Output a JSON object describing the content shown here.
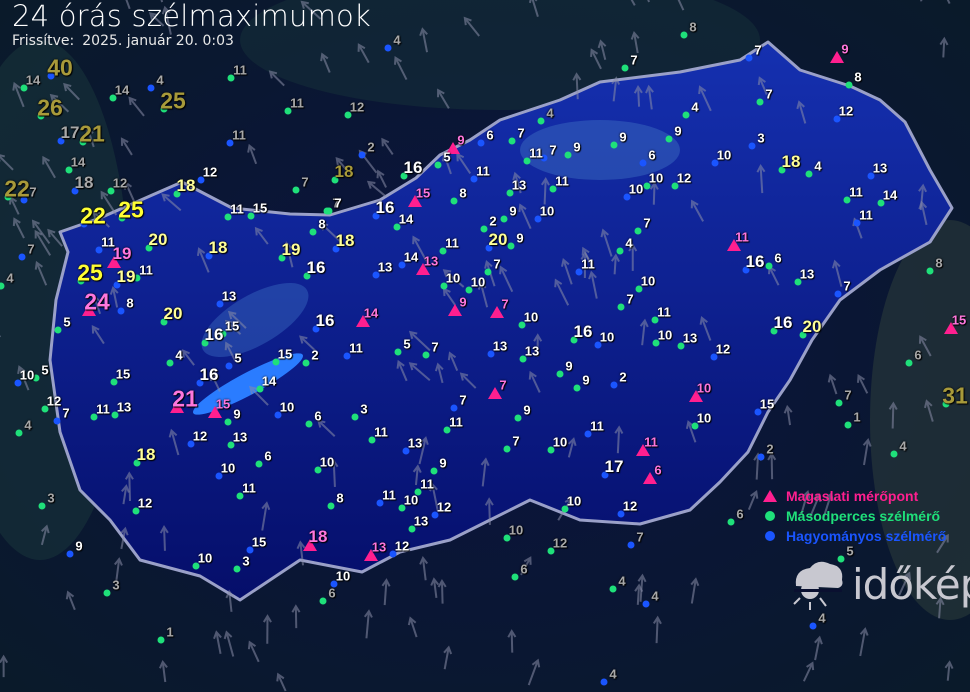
{
  "header": {
    "title": "24 órás szélmaximumok",
    "updated_label": "Frissítve:",
    "updated_value": "2025. január 20. 0:03"
  },
  "legend": {
    "items": [
      {
        "label": "Magaslati mérőpont",
        "symbol": "triangle",
        "color": "#ff1f8f"
      },
      {
        "label": "Másodperces szélmérő",
        "symbol": "dot",
        "color": "#1fe07a"
      },
      {
        "label": "Hagyományos szélmérő",
        "symbol": "dot",
        "color": "#1a55ff"
      }
    ]
  },
  "logo": {
    "text": "időkép"
  },
  "colors": {
    "background": "#070b2a",
    "country_fill": "#0a1a8a",
    "country_border": "#9aa0c8",
    "label_normal": "#ffffff",
    "label_strong": "#ffff99",
    "label_storm": "#ffff33",
    "label_mountain": "#ff77dd",
    "label_abroad": "#a8a8a8",
    "label_abroad_strong": "#a89a3a"
  },
  "stations": [
    {
      "v": "40",
      "k": "abroad_strong"
    },
    {
      "v": "14",
      "k": "abroad"
    },
    {
      "v": "26",
      "k": "abroad_strong"
    },
    {
      "v": "17",
      "k": "abroad"
    },
    {
      "v": "21",
      "k": "abroad_strong"
    },
    {
      "v": "14",
      "k": "abroad"
    },
    {
      "v": "4",
      "k": "abroad"
    },
    {
      "v": "25",
      "k": "abroad_strong"
    },
    {
      "v": "14",
      "k": "abroad"
    },
    {
      "v": "18",
      "k": "abroad"
    },
    {
      "v": "12",
      "k": "abroad"
    },
    {
      "v": "22",
      "k": "abroad_strong"
    },
    {
      "v": "7",
      "k": "abroad"
    },
    {
      "v": "11",
      "k": "abroad"
    },
    {
      "v": "11",
      "k": "abroad"
    },
    {
      "v": "11",
      "k": "abroad"
    },
    {
      "v": "7",
      "k": "abroad"
    },
    {
      "v": "12",
      "k": "abroad"
    },
    {
      "v": "2",
      "k": "abroad"
    },
    {
      "v": "18",
      "k": "abroad_strong"
    },
    {
      "v": "7",
      "k": "abroad"
    },
    {
      "v": "4",
      "k": "abroad"
    },
    {
      "v": "8",
      "k": "abroad"
    },
    {
      "v": "4",
      "k": "abroad"
    },
    {
      "v": "7",
      "k": "normal"
    },
    {
      "v": "9",
      "k": "mountain"
    },
    {
      "v": "8",
      "k": "normal"
    },
    {
      "v": "12",
      "k": "normal"
    },
    {
      "v": "7",
      "k": "normal"
    },
    {
      "v": "4",
      "k": "normal"
    },
    {
      "v": "3",
      "k": "normal"
    },
    {
      "v": "7",
      "k": "normal"
    },
    {
      "v": "18",
      "k": "strong"
    },
    {
      "v": "12",
      "k": "normal"
    },
    {
      "v": "11",
      "k": "normal"
    },
    {
      "v": "15",
      "k": "normal"
    },
    {
      "v": "22",
      "k": "storm"
    },
    {
      "v": "25",
      "k": "storm"
    },
    {
      "v": "20",
      "k": "strong"
    },
    {
      "v": "11",
      "k": "normal"
    },
    {
      "v": "19",
      "k": "mountain"
    },
    {
      "v": "25",
      "k": "storm"
    },
    {
      "v": "19",
      "k": "strong"
    },
    {
      "v": "11",
      "k": "normal"
    },
    {
      "v": "24",
      "k": "mountain"
    },
    {
      "v": "8",
      "k": "normal"
    },
    {
      "v": "20",
      "k": "strong"
    },
    {
      "v": "5",
      "k": "normal"
    },
    {
      "v": "18",
      "k": "strong"
    },
    {
      "v": "19",
      "k": "strong"
    },
    {
      "v": "16",
      "k": "normal"
    },
    {
      "v": "18",
      "k": "strong"
    },
    {
      "v": "8",
      "k": "normal"
    },
    {
      "v": "7",
      "k": "normal"
    },
    {
      "v": "16",
      "k": "normal"
    },
    {
      "v": "14",
      "k": "normal"
    },
    {
      "v": "16",
      "k": "normal"
    },
    {
      "v": "15",
      "k": "mountain"
    },
    {
      "v": "5",
      "k": "normal"
    },
    {
      "v": "9",
      "k": "mountain"
    },
    {
      "v": "6",
      "k": "normal"
    },
    {
      "v": "7",
      "k": "normal"
    },
    {
      "v": "11",
      "k": "normal"
    },
    {
      "v": "7",
      "k": "normal"
    },
    {
      "v": "9",
      "k": "normal"
    },
    {
      "v": "9",
      "k": "normal"
    },
    {
      "v": "6",
      "k": "normal"
    },
    {
      "v": "9",
      "k": "normal"
    },
    {
      "v": "8",
      "k": "normal"
    },
    {
      "v": "11",
      "k": "normal"
    },
    {
      "v": "13",
      "k": "normal"
    },
    {
      "v": "11",
      "k": "normal"
    },
    {
      "v": "10",
      "k": "normal"
    },
    {
      "v": "9",
      "k": "normal"
    },
    {
      "v": "2",
      "k": "normal"
    },
    {
      "v": "20",
      "k": "strong"
    },
    {
      "v": "9",
      "k": "normal"
    },
    {
      "v": "11",
      "k": "normal"
    },
    {
      "v": "14",
      "k": "normal"
    },
    {
      "v": "13",
      "k": "mountain"
    },
    {
      "v": "10",
      "k": "normal"
    },
    {
      "v": "13",
      "k": "normal"
    },
    {
      "v": "10",
      "k": "normal"
    },
    {
      "v": "7",
      "k": "normal"
    },
    {
      "v": "10",
      "k": "normal"
    },
    {
      "v": "10",
      "k": "normal"
    },
    {
      "v": "12",
      "k": "normal"
    },
    {
      "v": "10",
      "k": "normal"
    },
    {
      "v": "18",
      "k": "strong"
    },
    {
      "v": "4",
      "k": "normal"
    },
    {
      "v": "13",
      "k": "normal"
    },
    {
      "v": "11",
      "k": "normal"
    },
    {
      "v": "14",
      "k": "normal"
    },
    {
      "v": "11",
      "k": "normal"
    },
    {
      "v": "7",
      "k": "normal"
    },
    {
      "v": "4",
      "k": "normal"
    },
    {
      "v": "11",
      "k": "normal"
    },
    {
      "v": "10",
      "k": "normal"
    },
    {
      "v": "11",
      "k": "mountain"
    },
    {
      "v": "16",
      "k": "normal"
    },
    {
      "v": "6",
      "k": "normal"
    },
    {
      "v": "13",
      "k": "normal"
    },
    {
      "v": "7",
      "k": "normal"
    },
    {
      "v": "7",
      "k": "normal"
    },
    {
      "v": "11",
      "k": "normal"
    },
    {
      "v": "9",
      "k": "mountain"
    },
    {
      "v": "7",
      "k": "mountain"
    },
    {
      "v": "10",
      "k": "normal"
    },
    {
      "v": "13",
      "k": "normal"
    },
    {
      "v": "16",
      "k": "normal"
    },
    {
      "v": "15",
      "k": "normal"
    },
    {
      "v": "16",
      "k": "normal"
    },
    {
      "v": "14",
      "k": "mountain"
    },
    {
      "v": "4",
      "k": "normal"
    },
    {
      "v": "5",
      "k": "normal"
    },
    {
      "v": "15",
      "k": "normal"
    },
    {
      "v": "2",
      "k": "normal"
    },
    {
      "v": "11",
      "k": "normal"
    },
    {
      "v": "5",
      "k": "normal"
    },
    {
      "v": "7",
      "k": "normal"
    },
    {
      "v": "13",
      "k": "normal"
    },
    {
      "v": "13",
      "k": "normal"
    },
    {
      "v": "16",
      "k": "normal"
    },
    {
      "v": "10",
      "k": "normal"
    },
    {
      "v": "10",
      "k": "normal"
    },
    {
      "v": "13",
      "k": "normal"
    },
    {
      "v": "12",
      "k": "normal"
    },
    {
      "v": "16",
      "k": "normal"
    },
    {
      "v": "20",
      "k": "strong"
    },
    {
      "v": "15",
      "k": "mountain"
    },
    {
      "v": "6",
      "k": "abroad"
    },
    {
      "v": "31",
      "k": "abroad_strong"
    },
    {
      "v": "10",
      "k": "normal"
    },
    {
      "v": "5",
      "k": "normal"
    },
    {
      "v": "15",
      "k": "normal"
    },
    {
      "v": "16",
      "k": "normal"
    },
    {
      "v": "14",
      "k": "normal"
    },
    {
      "v": "12",
      "k": "normal"
    },
    {
      "v": "7",
      "k": "normal"
    },
    {
      "v": "11",
      "k": "normal"
    },
    {
      "v": "13",
      "k": "normal"
    },
    {
      "v": "21",
      "k": "mountain"
    },
    {
      "v": "15",
      "k": "mountain"
    },
    {
      "v": "9",
      "k": "normal"
    },
    {
      "v": "10",
      "k": "normal"
    },
    {
      "v": "6",
      "k": "normal"
    },
    {
      "v": "3",
      "k": "normal"
    },
    {
      "v": "7",
      "k": "normal"
    },
    {
      "v": "11",
      "k": "normal"
    },
    {
      "v": "9",
      "k": "normal"
    },
    {
      "v": "7",
      "k": "mountain"
    },
    {
      "v": "9",
      "k": "normal"
    },
    {
      "v": "9",
      "k": "normal"
    },
    {
      "v": "2",
      "k": "normal"
    },
    {
      "v": "10",
      "k": "mountain"
    },
    {
      "v": "7",
      "k": "abroad"
    },
    {
      "v": "15",
      "k": "normal"
    },
    {
      "v": "10",
      "k": "normal"
    },
    {
      "v": "1",
      "k": "abroad"
    },
    {
      "v": "12",
      "k": "normal"
    },
    {
      "v": "13",
      "k": "normal"
    },
    {
      "v": "11",
      "k": "normal"
    },
    {
      "v": "13",
      "k": "normal"
    },
    {
      "v": "7",
      "k": "normal"
    },
    {
      "v": "10",
      "k": "normal"
    },
    {
      "v": "11",
      "k": "normal"
    },
    {
      "v": "11",
      "k": "mountain"
    },
    {
      "v": "4",
      "k": "abroad"
    },
    {
      "v": "2",
      "k": "abroad"
    },
    {
      "v": "18",
      "k": "strong"
    },
    {
      "v": "6",
      "k": "normal"
    },
    {
      "v": "10",
      "k": "normal"
    },
    {
      "v": "10",
      "k": "normal"
    },
    {
      "v": "9",
      "k": "normal"
    },
    {
      "v": "17",
      "k": "normal"
    },
    {
      "v": "6",
      "k": "mountain"
    },
    {
      "v": "11",
      "k": "normal"
    },
    {
      "v": "11",
      "k": "normal"
    },
    {
      "v": "11",
      "k": "normal"
    },
    {
      "v": "10",
      "k": "normal"
    },
    {
      "v": "12",
      "k": "normal"
    },
    {
      "v": "8",
      "k": "normal"
    },
    {
      "v": "10",
      "k": "normal"
    },
    {
      "v": "12",
      "k": "normal"
    },
    {
      "v": "12",
      "k": "normal"
    },
    {
      "v": "13",
      "k": "normal"
    },
    {
      "v": "15",
      "k": "normal"
    },
    {
      "v": "18",
      "k": "mountain"
    },
    {
      "v": "13",
      "k": "mountain"
    },
    {
      "v": "12",
      "k": "normal"
    },
    {
      "v": "10",
      "k": "abroad"
    },
    {
      "v": "12",
      "k": "abroad"
    },
    {
      "v": "7",
      "k": "abroad"
    },
    {
      "v": "6",
      "k": "abroad"
    },
    {
      "v": "5",
      "k": "abroad"
    },
    {
      "v": "4",
      "k": "abroad"
    },
    {
      "v": "6",
      "k": "abroad"
    },
    {
      "v": "3",
      "k": "abroad"
    },
    {
      "v": "9",
      "k": "normal"
    },
    {
      "v": "10",
      "k": "normal"
    },
    {
      "v": "3",
      "k": "normal"
    },
    {
      "v": "10",
      "k": "normal"
    },
    {
      "v": "6",
      "k": "abroad"
    },
    {
      "v": "4",
      "k": "abroad"
    },
    {
      "v": "4",
      "k": "abroad"
    },
    {
      "v": "3",
      "k": "abroad"
    },
    {
      "v": "1",
      "k": "abroad"
    },
    {
      "v": "4",
      "k": "abroad"
    },
    {
      "v": "8",
      "k": "abroad"
    },
    {
      "v": "4",
      "k": "abroad"
    },
    {
      "v": "7",
      "k": "abroad"
    },
    {
      "v": "4",
      "k": "abroad"
    }
  ]
}
